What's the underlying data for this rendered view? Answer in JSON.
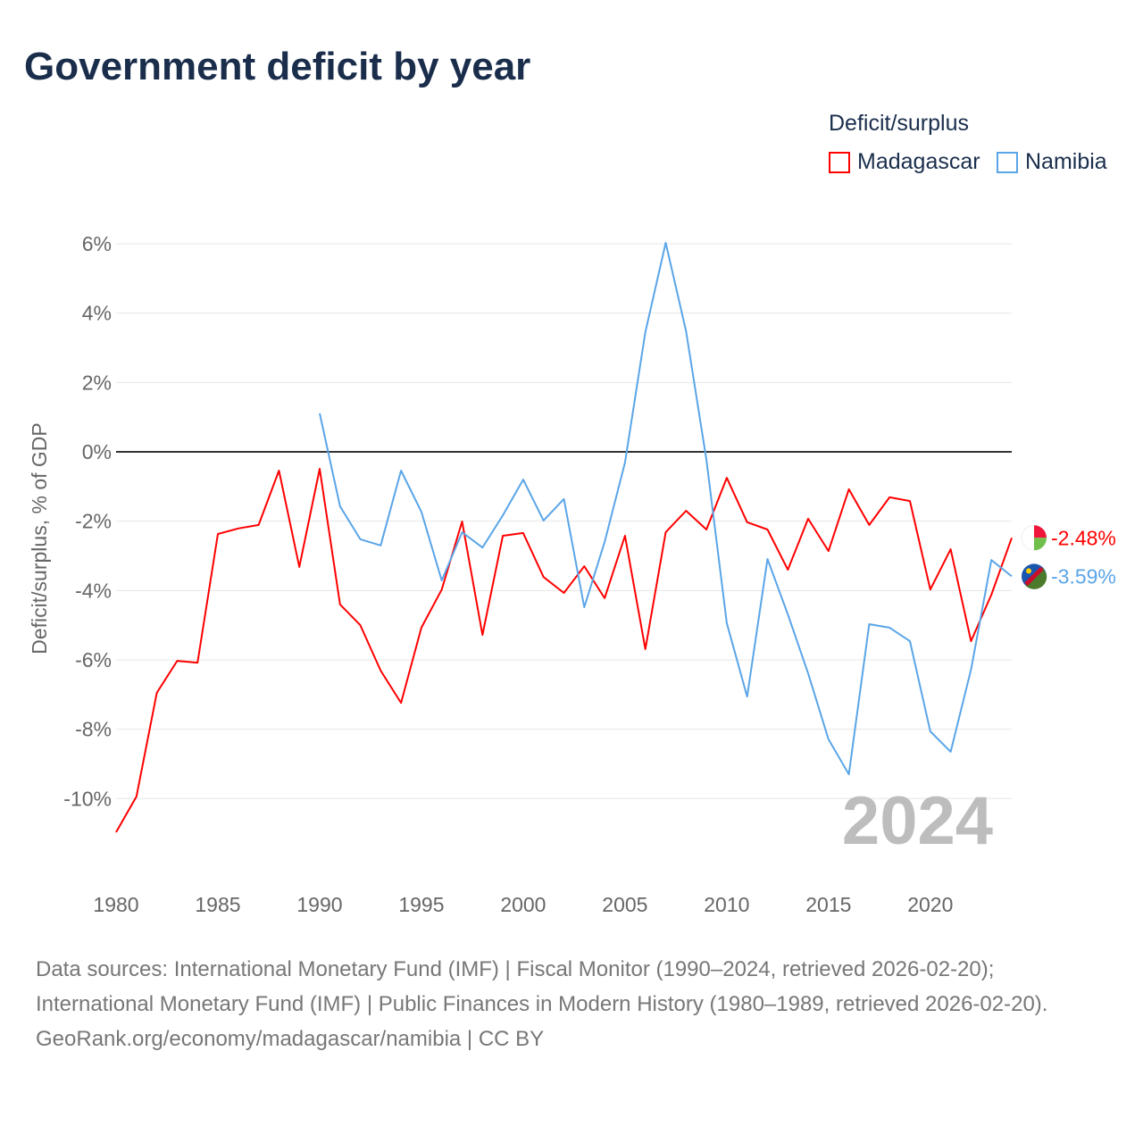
{
  "title": "Government deficit by year",
  "legend": {
    "title": "Deficit/surplus",
    "items": [
      {
        "label": "Madagascar",
        "color": "#ff0000"
      },
      {
        "label": "Namibia",
        "color": "#5aa5e8"
      }
    ]
  },
  "footer": {
    "sources": "Data sources: International Monetary Fund (IMF) | Fiscal Monitor (1990–2024, retrieved 2026-02-20); International Monetary Fund (IMF) | Public Finances in Modern History (1980–1989, retrieved 2026-02-20).",
    "credit": "GeoRank.org/economy/madagascar/namibia | CC BY"
  },
  "chart_data": {
    "type": "line",
    "title": "Government deficit by year",
    "ylabel": "Deficit/surplus, % of GDP",
    "xlabel": "",
    "xlim": [
      1980,
      2024
    ],
    "ylim": [
      -11,
      6
    ],
    "yticks": [
      6,
      4,
      2,
      0,
      -2,
      -4,
      -6,
      -8,
      -10
    ],
    "ytick_labels": [
      "6%",
      "4%",
      "2%",
      "0%",
      "-2%",
      "-4%",
      "-6%",
      "-8%",
      "-10%"
    ],
    "xticks": [
      1980,
      1985,
      1990,
      1995,
      2000,
      2005,
      2010,
      2015,
      2020
    ],
    "xtick_labels": [
      "1980",
      "1985",
      "1990",
      "1995",
      "2000",
      "2005",
      "2010",
      "2015",
      "2020"
    ],
    "year_label": "2024",
    "grid": true,
    "legend_position": "top-right",
    "series": [
      {
        "name": "Madagascar",
        "color": "#ff0000",
        "end_label": "-2.48%",
        "start": 1980,
        "values": [
          -10.97,
          -9.94,
          -6.95,
          -6.03,
          -6.08,
          -2.37,
          -2.21,
          -2.11,
          -0.54,
          -3.32,
          -0.49,
          -4.4,
          -5.0,
          -6.31,
          -7.24,
          -5.07,
          -3.97,
          -2.01,
          -5.28,
          -2.42,
          -2.34,
          -3.61,
          -4.07,
          -3.3,
          -4.22,
          -2.42,
          -5.69,
          -2.32,
          -1.7,
          -2.24,
          -0.75,
          -2.03,
          -2.24,
          -3.4,
          -1.93,
          -2.86,
          -1.08,
          -2.11,
          -1.31,
          -1.42,
          -3.97,
          -2.81,
          -5.46,
          -4.12,
          -2.48
        ]
      },
      {
        "name": "Namibia",
        "color": "#5aa5e8",
        "end_label": "-3.59%",
        "start": 1990,
        "values": [
          1.11,
          -1.57,
          -2.52,
          -2.7,
          -0.54,
          -1.73,
          -3.71,
          -2.32,
          -2.76,
          -1.83,
          -0.8,
          -1.98,
          -1.36,
          -4.48,
          -2.6,
          -0.31,
          3.45,
          6.03,
          3.48,
          -0.23,
          -4.94,
          -7.06,
          -3.09,
          -4.69,
          -6.39,
          -8.29,
          -9.3,
          -4.97,
          -5.07,
          -5.46,
          -8.06,
          -8.65,
          -6.28,
          -3.12,
          -3.59
        ]
      }
    ]
  }
}
